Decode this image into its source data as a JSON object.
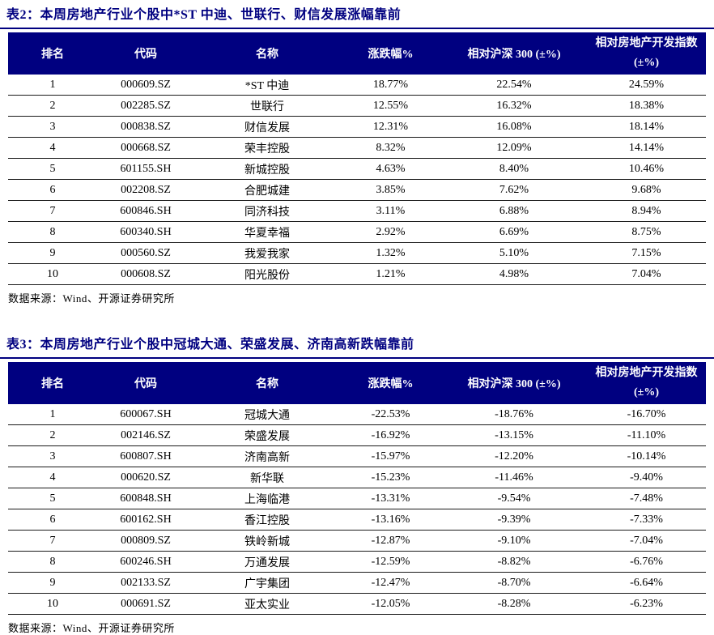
{
  "page": {
    "background": "#ffffff",
    "accent_color": "#000080",
    "text_color": "#000000",
    "divider_color": "#1a1a1a"
  },
  "tables": [
    {
      "title": "表2：本周房地产行业个股中*ST 中迪、世联行、财信发展涨幅靠前",
      "headers": [
        "排名",
        "代码",
        "名称",
        "涨跌幅%",
        "相对沪深 300 (±%)"
      ],
      "last_header": {
        "line1": "相对房地产开发指数",
        "line2": "(±%)"
      },
      "rows": [
        [
          "1",
          "000609.SZ",
          "*ST 中迪",
          "18.77%",
          "22.54%",
          "24.59%"
        ],
        [
          "2",
          "002285.SZ",
          "世联行",
          "12.55%",
          "16.32%",
          "18.38%"
        ],
        [
          "3",
          "000838.SZ",
          "财信发展",
          "12.31%",
          "16.08%",
          "18.14%"
        ],
        [
          "4",
          "000668.SZ",
          "荣丰控股",
          "8.32%",
          "12.09%",
          "14.14%"
        ],
        [
          "5",
          "601155.SH",
          "新城控股",
          "4.63%",
          "8.40%",
          "10.46%"
        ],
        [
          "6",
          "002208.SZ",
          "合肥城建",
          "3.85%",
          "7.62%",
          "9.68%"
        ],
        [
          "7",
          "600846.SH",
          "同济科技",
          "3.11%",
          "6.88%",
          "8.94%"
        ],
        [
          "8",
          "600340.SH",
          "华夏幸福",
          "2.92%",
          "6.69%",
          "8.75%"
        ],
        [
          "9",
          "000560.SZ",
          "我爱我家",
          "1.32%",
          "5.10%",
          "7.15%"
        ],
        [
          "10",
          "000608.SZ",
          "阳光股份",
          "1.21%",
          "4.98%",
          "7.04%"
        ]
      ],
      "source": "数据来源：Wind、开源证券研究所"
    },
    {
      "title": "表3：本周房地产行业个股中冠城大通、荣盛发展、济南高新跌幅靠前",
      "headers": [
        "排名",
        "代码",
        "名称",
        "涨跌幅%",
        "相对沪深 300 (±%)"
      ],
      "last_header": {
        "line1": "相对房地产开发指数",
        "line2": "(±%)"
      },
      "rows": [
        [
          "1",
          "600067.SH",
          "冠城大通",
          "-22.53%",
          "-18.76%",
          "-16.70%"
        ],
        [
          "2",
          "002146.SZ",
          "荣盛发展",
          "-16.92%",
          "-13.15%",
          "-11.10%"
        ],
        [
          "3",
          "600807.SH",
          "济南高新",
          "-15.97%",
          "-12.20%",
          "-10.14%"
        ],
        [
          "4",
          "000620.SZ",
          "新华联",
          "-15.23%",
          "-11.46%",
          "-9.40%"
        ],
        [
          "5",
          "600848.SH",
          "上海临港",
          "-13.31%",
          "-9.54%",
          "-7.48%"
        ],
        [
          "6",
          "600162.SH",
          "香江控股",
          "-13.16%",
          "-9.39%",
          "-7.33%"
        ],
        [
          "7",
          "000809.SZ",
          "铁岭新城",
          "-12.87%",
          "-9.10%",
          "-7.04%"
        ],
        [
          "8",
          "600246.SH",
          "万通发展",
          "-12.59%",
          "-8.82%",
          "-6.76%"
        ],
        [
          "9",
          "002133.SZ",
          "广宇集团",
          "-12.47%",
          "-8.70%",
          "-6.64%"
        ],
        [
          "10",
          "000691.SZ",
          "亚太实业",
          "-12.05%",
          "-8.28%",
          "-6.23%"
        ]
      ],
      "source": "数据来源：Wind、开源证券研究所"
    }
  ]
}
